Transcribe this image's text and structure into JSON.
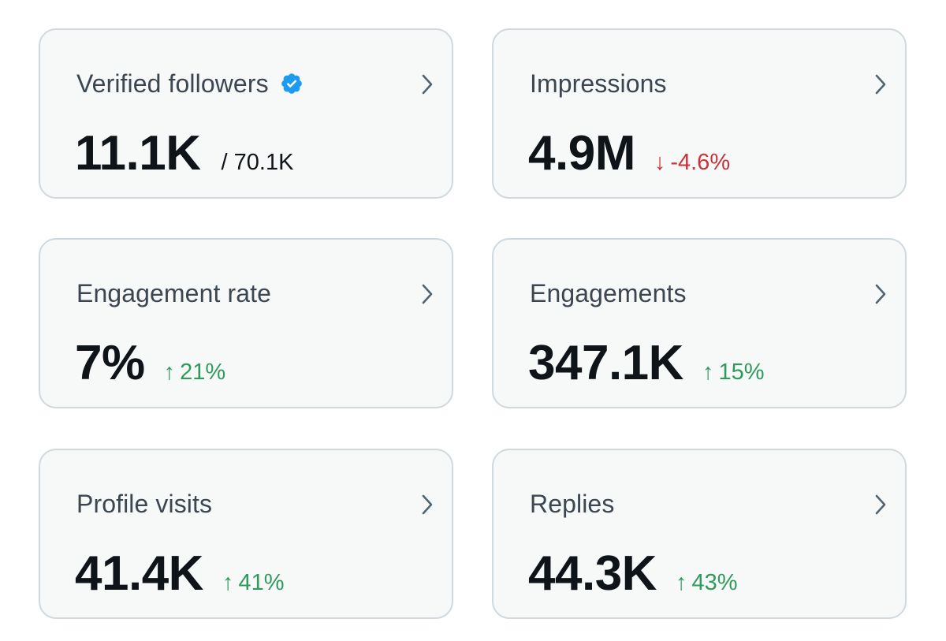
{
  "cards": [
    {
      "title": "Verified followers",
      "value": "11.1K",
      "sub": "/ 70.1K"
    },
    {
      "title": "Impressions",
      "value": "4.9M",
      "arrow": "↓",
      "change": "-4.6%",
      "direction": "down"
    },
    {
      "title": "Engagement rate",
      "value": "7%",
      "arrow": "↑",
      "change": "21%",
      "direction": "up"
    },
    {
      "title": "Engagements",
      "value": "347.1K",
      "arrow": "↑",
      "change": "15%",
      "direction": "up"
    },
    {
      "title": "Profile visits",
      "value": "41.4K",
      "arrow": "↑",
      "change": "41%",
      "direction": "up"
    },
    {
      "title": "Replies",
      "value": "44.3K",
      "arrow": "↑",
      "change": "43%",
      "direction": "up"
    }
  ],
  "colors": {
    "up": "#2f9a5c",
    "down": "#c8323a",
    "verified": "#1d9bf0"
  },
  "icons": {
    "verified": "verified-badge-icon",
    "chevron": "chevron-right-icon"
  }
}
